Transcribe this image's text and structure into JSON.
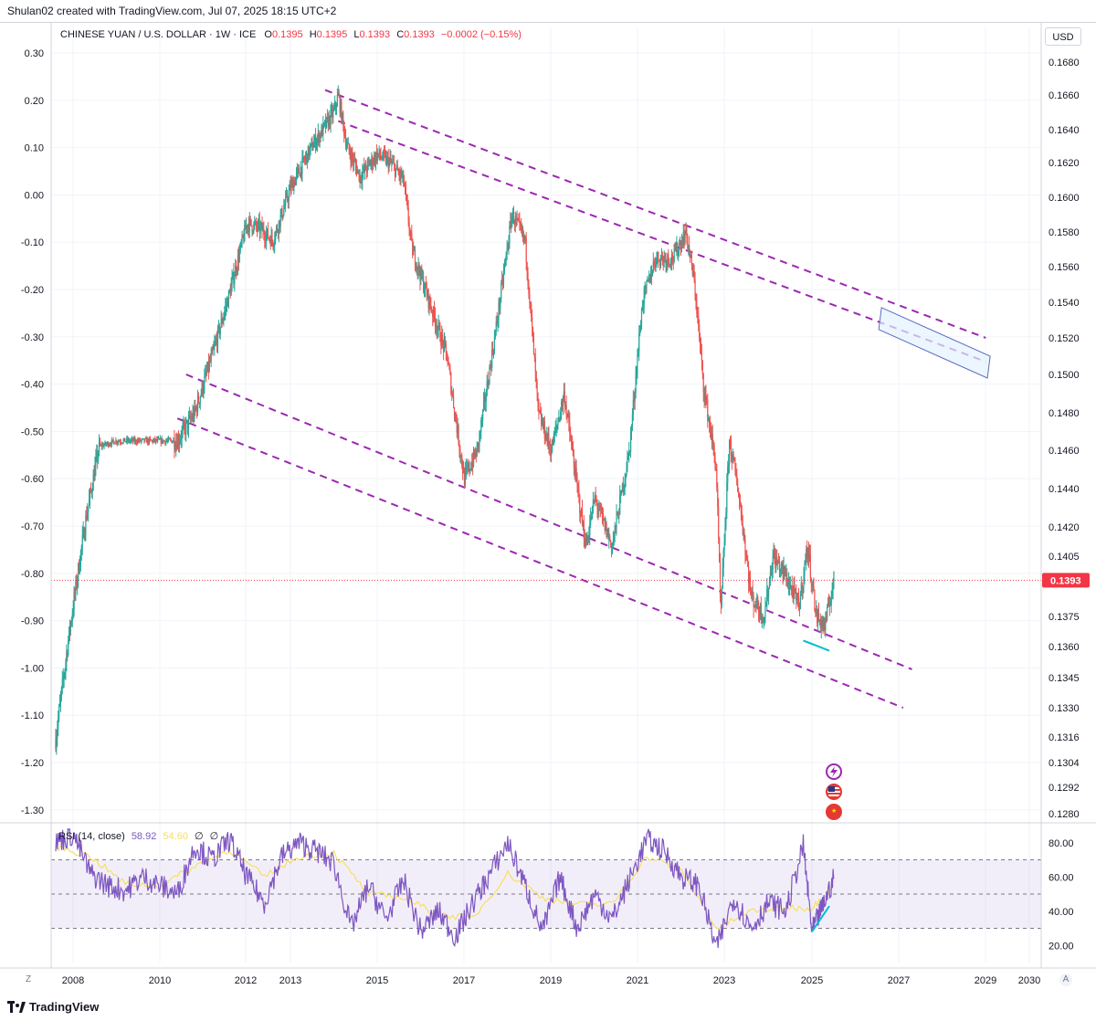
{
  "header": {
    "attribution": "Shulan02 created with TradingView.com, Jul 07, 2025 18:15 UTC+2",
    "symbol": "CHINESE YUAN / U.S. DOLLAR · 1W · ICE",
    "o_label": "O",
    "o_value": "0.1395",
    "h_label": "H",
    "h_value": "0.1395",
    "l_label": "L",
    "l_value": "0.1393",
    "c_label": "C",
    "c_value": "0.1393",
    "change": "−0.0002 (−0.15%)"
  },
  "currency_button": "USD",
  "footer": {
    "brand": "TradingView",
    "z_label": "Z",
    "a_label": "A"
  },
  "colors": {
    "up": "#26a69a",
    "down": "#ef5350",
    "channel": "#9c27b0",
    "rsi": "#7e57c2",
    "rsi_ma": "#f7e05e",
    "price_line": "#f23645",
    "highlight": "#00bcd4"
  },
  "icons": [
    "lightning-event-icon",
    "us-flag-icon",
    "china-flag-icon"
  ],
  "chart_data": [
    {
      "type": "candlestick",
      "title": "CHINESE YUAN / U.S. DOLLAR · 1W · ICE",
      "x_ticks": [
        "2008",
        "2010",
        "2012",
        "2013",
        "2015",
        "2017",
        "2019",
        "2021",
        "2023",
        "2025",
        "2027",
        "2029",
        "2030"
      ],
      "left_axis_ticks": [
        "0.30",
        "0.20",
        "0.10",
        "0.00",
        "-0.10",
        "-0.20",
        "-0.30",
        "-0.40",
        "-0.50",
        "-0.60",
        "-0.70",
        "-0.80",
        "-0.90",
        "-1.00",
        "-1.10",
        "-1.20",
        "-1.30"
      ],
      "right_axis_ticks": [
        "0.1680",
        "0.1660",
        "0.1640",
        "0.1620",
        "0.1600",
        "0.1580",
        "0.1560",
        "0.1540",
        "0.1520",
        "0.1500",
        "0.1480",
        "0.1460",
        "0.1440",
        "0.1420",
        "0.1405",
        "0.1375",
        "0.1360",
        "0.1345",
        "0.1330",
        "0.1316",
        "0.1304",
        "0.1292",
        "0.1280"
      ],
      "last_price": "0.1393",
      "price_path": [
        [
          2007.6,
          0.1315
        ],
        [
          2007.9,
          0.1365
        ],
        [
          2008.3,
          0.1425
        ],
        [
          2008.6,
          0.1462
        ],
        [
          2009.0,
          0.1465
        ],
        [
          2009.5,
          0.1465
        ],
        [
          2010.0,
          0.1465
        ],
        [
          2010.4,
          0.1465
        ],
        [
          2010.8,
          0.148
        ],
        [
          2011.2,
          0.151
        ],
        [
          2011.6,
          0.1545
        ],
        [
          2012.0,
          0.1585
        ],
        [
          2012.3,
          0.1582
        ],
        [
          2012.6,
          0.1575
        ],
        [
          2013.0,
          0.1605
        ],
        [
          2013.5,
          0.163
        ],
        [
          2014.0,
          0.165
        ],
        [
          2014.1,
          0.166
        ],
        [
          2014.3,
          0.163
        ],
        [
          2014.6,
          0.1612
        ],
        [
          2015.0,
          0.1625
        ],
        [
          2015.3,
          0.162
        ],
        [
          2015.6,
          0.161
        ],
        [
          2015.8,
          0.157
        ],
        [
          2016.2,
          0.154
        ],
        [
          2016.6,
          0.151
        ],
        [
          2017.0,
          0.1445
        ],
        [
          2017.3,
          0.146
        ],
        [
          2017.7,
          0.152
        ],
        [
          2018.1,
          0.159
        ],
        [
          2018.4,
          0.1575
        ],
        [
          2018.7,
          0.148
        ],
        [
          2019.0,
          0.146
        ],
        [
          2019.3,
          0.149
        ],
        [
          2019.6,
          0.144
        ],
        [
          2019.8,
          0.141
        ],
        [
          2020.0,
          0.1435
        ],
        [
          2020.4,
          0.141
        ],
        [
          2020.8,
          0.146
        ],
        [
          2021.1,
          0.154
        ],
        [
          2021.4,
          0.1565
        ],
        [
          2021.8,
          0.1565
        ],
        [
          2022.1,
          0.158
        ],
        [
          2022.3,
          0.155
        ],
        [
          2022.5,
          0.1495
        ],
        [
          2022.8,
          0.145
        ],
        [
          2022.9,
          0.1375
        ],
        [
          2023.1,
          0.1465
        ],
        [
          2023.3,
          0.144
        ],
        [
          2023.6,
          0.1385
        ],
        [
          2023.9,
          0.1375
        ],
        [
          2024.1,
          0.1405
        ],
        [
          2024.4,
          0.1395
        ],
        [
          2024.7,
          0.138
        ],
        [
          2024.9,
          0.141
        ],
        [
          2025.1,
          0.1375
        ],
        [
          2025.3,
          0.137
        ],
        [
          2025.5,
          0.1393
        ]
      ],
      "channel_lines": [
        {
          "name": "upper-channel-top",
          "from": [
            2013.8,
            0.1663
          ],
          "to": [
            2029.0,
            0.152
          ]
        },
        {
          "name": "upper-channel-bottom",
          "from": [
            2014.1,
            0.1645
          ],
          "to": [
            2029.0,
            0.1507
          ]
        },
        {
          "name": "lower-channel-top",
          "from": [
            2010.6,
            0.15
          ],
          "to": [
            2027.3,
            0.1349
          ]
        },
        {
          "name": "lower-channel-bottom",
          "from": [
            2010.4,
            0.1477
          ],
          "to": [
            2027.1,
            0.133
          ]
        }
      ],
      "highlight_segment": {
        "from": [
          2024.8,
          0.1363
        ],
        "to": [
          2025.4,
          0.1358
        ]
      },
      "target_box": {
        "from": [
          2026.6,
          0.1537
        ],
        "to": [
          2029.1,
          0.151
        ]
      }
    },
    {
      "type": "line",
      "title": "RSI (14, close)",
      "legend": {
        "name": "RSI (14, close)",
        "rsi_value": "58.92",
        "ma_value": "54.60",
        "extra1": "∅",
        "extra2": "∅"
      },
      "y_ticks": [
        "80.00",
        "60.00",
        "40.00",
        "20.00"
      ],
      "ylim": [
        10,
        90
      ],
      "bands": {
        "upper": 70,
        "middle": 50,
        "lower": 30
      },
      "series": [
        {
          "name": "RSI",
          "x": [
            2007.6,
            2008.0,
            2008.4,
            2008.8,
            2009.2,
            2009.6,
            2010.0,
            2010.4,
            2010.8,
            2011.2,
            2011.6,
            2012.0,
            2012.4,
            2012.8,
            2013.2,
            2013.6,
            2014.0,
            2014.4,
            2014.8,
            2015.2,
            2015.6,
            2016.0,
            2016.4,
            2016.8,
            2017.2,
            2017.6,
            2018.0,
            2018.4,
            2018.8,
            2019.2,
            2019.6,
            2020.0,
            2020.4,
            2020.8,
            2021.2,
            2021.6,
            2022.0,
            2022.4,
            2022.8,
            2023.2,
            2023.6,
            2024.0,
            2024.4,
            2024.8,
            2025.0,
            2025.2,
            2025.5
          ],
          "values": [
            80,
            85,
            62,
            55,
            52,
            60,
            55,
            50,
            78,
            70,
            82,
            60,
            45,
            72,
            80,
            75,
            68,
            30,
            55,
            35,
            58,
            28,
            40,
            25,
            45,
            62,
            80,
            55,
            28,
            60,
            30,
            50,
            35,
            58,
            82,
            75,
            60,
            55,
            18,
            48,
            30,
            45,
            40,
            78,
            28,
            40,
            58.92
          ]
        },
        {
          "name": "RSI-based MA",
          "x": [
            2007.6,
            2008.4,
            2009.2,
            2010.0,
            2010.8,
            2011.6,
            2012.4,
            2013.2,
            2014.0,
            2014.8,
            2015.6,
            2016.4,
            2017.2,
            2018.0,
            2018.8,
            2019.6,
            2020.4,
            2021.2,
            2022.0,
            2022.8,
            2023.6,
            2024.4,
            2025.0,
            2025.5
          ],
          "values": [
            78,
            72,
            56,
            55,
            66,
            76,
            60,
            72,
            74,
            50,
            48,
            38,
            36,
            62,
            48,
            44,
            44,
            72,
            64,
            30,
            40,
            42,
            42,
            54.6
          ]
        }
      ],
      "highlight_segment": {
        "from": [
          2025.0,
          28
        ],
        "to": [
          2025.4,
          43
        ]
      }
    }
  ]
}
